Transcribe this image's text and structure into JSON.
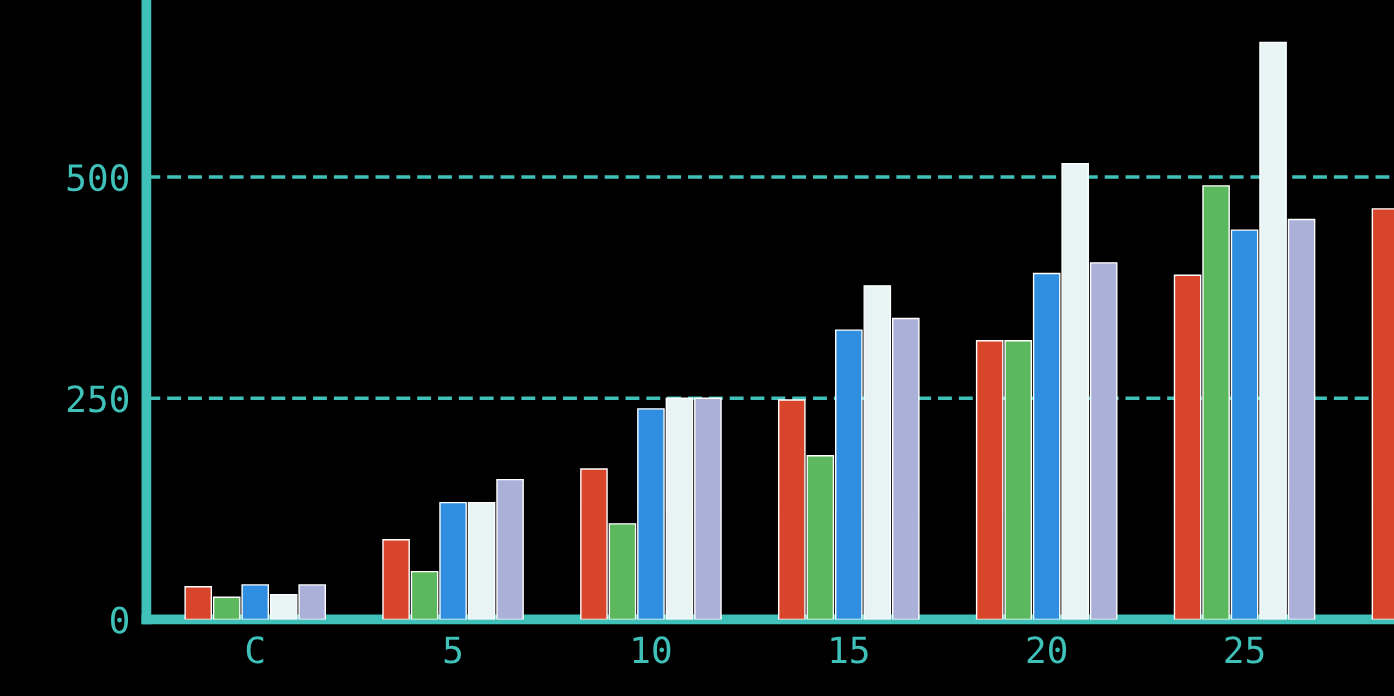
{
  "chart_data": {
    "type": "bar",
    "categories": [
      "C",
      "5",
      "10",
      "15",
      "20",
      "25",
      null
    ],
    "series": [
      {
        "color": "#d9452b",
        "values": [
          37,
          90,
          170,
          248,
          315,
          389,
          464
        ]
      },
      {
        "color": "#5cb85c",
        "values": [
          25,
          54,
          108,
          185,
          315,
          490,
          null
        ]
      },
      {
        "color": "#2f8ee0",
        "values": [
          39,
          132,
          238,
          327,
          391,
          440,
          null
        ]
      },
      {
        "color": "#e8f4f4",
        "values": [
          28,
          132,
          250,
          377,
          515,
          652,
          null
        ]
      },
      {
        "color": "#aab0d8",
        "values": [
          39,
          158,
          250,
          340,
          403,
          452,
          null
        ]
      }
    ],
    "ylim": [
      0,
      700
    ],
    "yticks": [
      0,
      250,
      500
    ],
    "grid": "y",
    "legend": false
  }
}
